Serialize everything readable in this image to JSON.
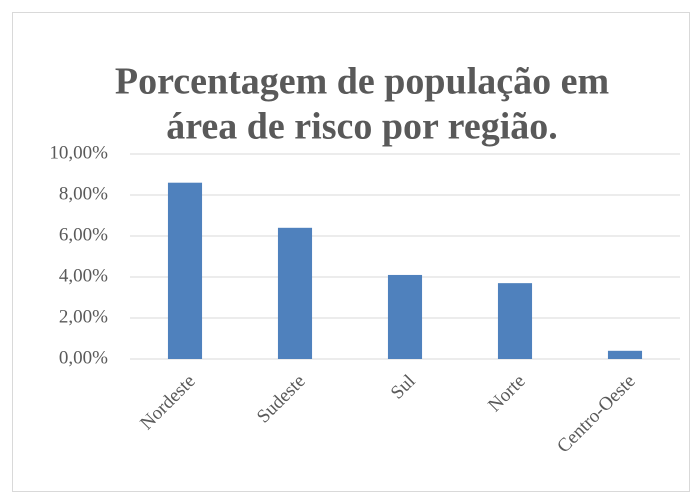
{
  "chart_data": {
    "type": "bar",
    "title": [
      "Porcentagem de população em",
      "área de risco por região."
    ],
    "categories": [
      "Nordeste",
      "Sudeste",
      "Sul",
      "Norte",
      "Centro-Oeste"
    ],
    "values": [
      8.6,
      6.4,
      4.1,
      3.7,
      0.4
    ],
    "color": "#4f81bd",
    "ylim": [
      0,
      10
    ],
    "yticks": [
      {
        "value": 0,
        "label": "0,00%"
      },
      {
        "value": 2,
        "label": "2,00%"
      },
      {
        "value": 4,
        "label": "4,00%"
      },
      {
        "value": 6,
        "label": "6,00%"
      },
      {
        "value": 8,
        "label": "8,00%"
      },
      {
        "value": 10,
        "label": "10,00%"
      }
    ],
    "grid": true
  }
}
